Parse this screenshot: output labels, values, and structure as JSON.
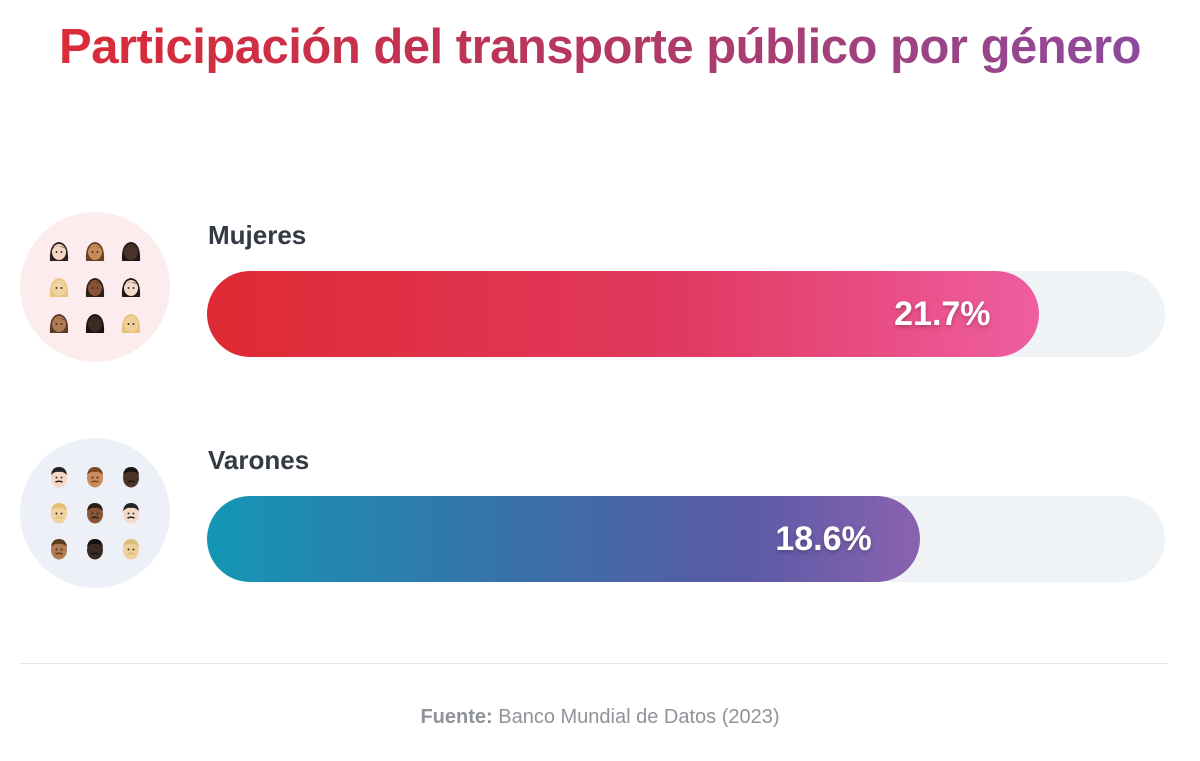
{
  "chart_data": {
    "type": "bar",
    "orientation": "horizontal",
    "title": "Participación del transporte público por género",
    "categories": [
      "Mujeres",
      "Varones"
    ],
    "values": [
      21.7,
      18.6
    ],
    "value_labels": [
      "21.7%",
      "18.6%"
    ],
    "unit": "%",
    "xlim": [
      0,
      25
    ],
    "grid": false,
    "colors": {
      "Mujeres": [
        "#de2a33",
        "#ee5ea0"
      ],
      "Varones": [
        "#1496b4",
        "#8a62ae"
      ],
      "track": "#f0f3f5"
    },
    "icons": [
      "women-emoji-grid-icon",
      "men-emoji-grid-icon"
    ]
  },
  "footer": {
    "source_label": "Fuente:",
    "source_text": "Banco Mundial de Datos (2023)"
  }
}
